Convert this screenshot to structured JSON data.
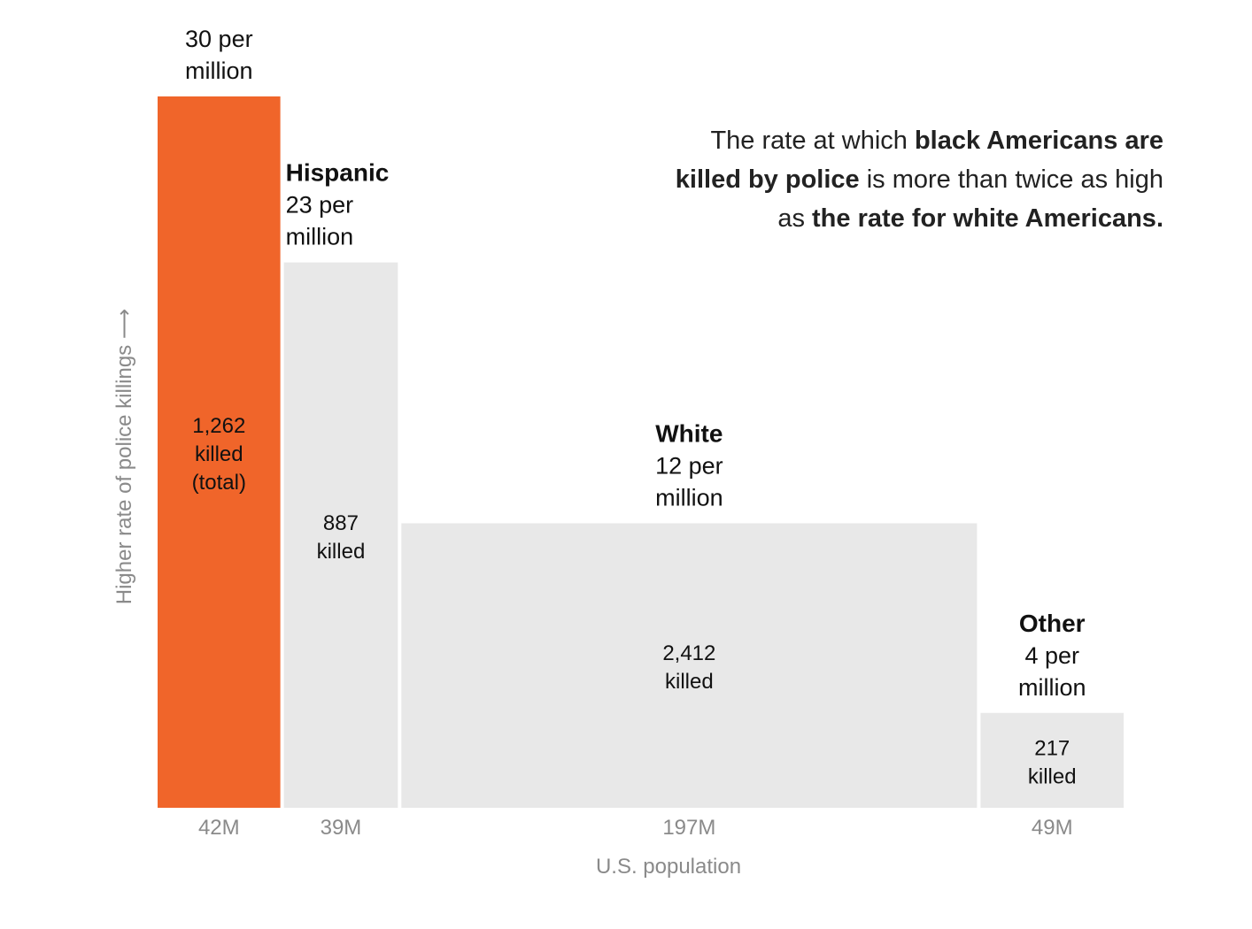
{
  "chart_data": {
    "type": "bar",
    "variant": "variable-width (marimekko)",
    "xlabel": "U.S. population",
    "ylabel": "Higher rate of police killings ⟶",
    "grid": false,
    "categories": [
      "",
      "Hispanic",
      "White",
      "Other"
    ],
    "rate_labels": [
      "30 per million",
      "23 per million",
      "12 per million",
      "4 per million"
    ],
    "rate_lines": [
      [
        "30 per",
        "million"
      ],
      [
        "23 per",
        "million"
      ],
      [
        "12 per",
        "million"
      ],
      [
        "4 per",
        "million"
      ]
    ],
    "values": [
      30,
      23,
      12,
      4
    ],
    "population_millions": [
      42,
      39,
      197,
      49
    ],
    "population_labels": [
      "42M",
      "39M",
      "197M",
      "49M"
    ],
    "killed_lines": [
      [
        "1,262",
        "killed",
        "(total)"
      ],
      [
        "887",
        "killed"
      ],
      [
        "2,412",
        "killed"
      ],
      [
        "217",
        "killed"
      ]
    ],
    "killed": [
      1262,
      887,
      2412,
      217
    ],
    "colors": [
      "#f0652a",
      "#e8e8e8",
      "#e8e8e8",
      "#e8e8e8"
    ],
    "annotation": [
      [
        {
          "t": "The rate at which ",
          "b": false
        },
        {
          "t": "black Americans are",
          "b": true
        }
      ],
      [
        {
          "t": "killed by police",
          "b": true
        },
        {
          "t": " is more than twice as high",
          "b": false
        }
      ],
      [
        {
          "t": "as ",
          "b": false
        },
        {
          "t": "the rate for white Americans.",
          "b": true
        }
      ]
    ]
  }
}
